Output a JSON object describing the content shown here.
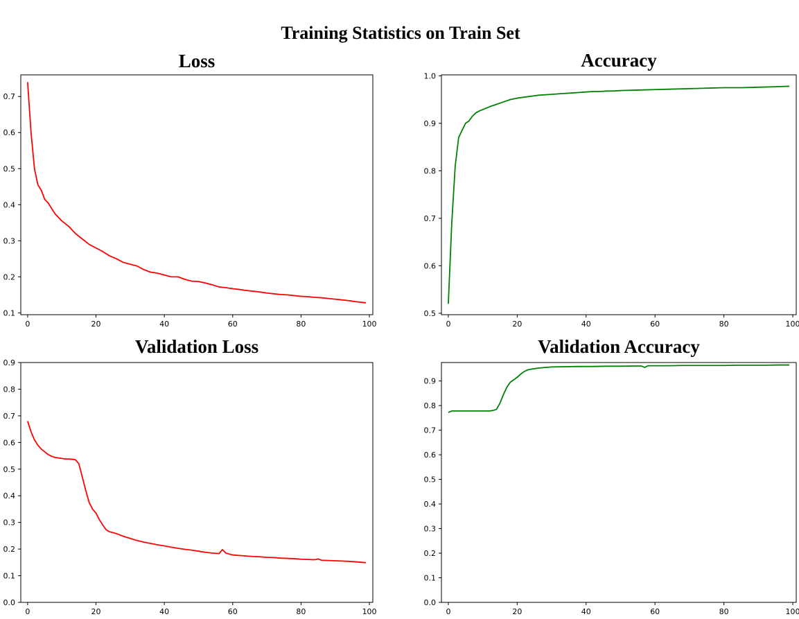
{
  "suptitle": "Training Statistics on Train Set",
  "chart_data": [
    {
      "type": "line",
      "title": "Loss",
      "xlim": [
        -2,
        101
      ],
      "ylim": [
        0.095,
        0.76
      ],
      "xticks": [
        0,
        20,
        40,
        60,
        80,
        100
      ],
      "yticks": [
        0.1,
        0.2,
        0.3,
        0.4,
        0.5,
        0.6,
        0.7
      ],
      "color": "#ff0000",
      "x": [
        0,
        1,
        2,
        3,
        4,
        5,
        6,
        7,
        8,
        9,
        10,
        12,
        14,
        16,
        18,
        20,
        22,
        24,
        26,
        28,
        30,
        32,
        34,
        36,
        38,
        40,
        42,
        44,
        46,
        48,
        50,
        52,
        54,
        56,
        58,
        60,
        62,
        64,
        66,
        68,
        70,
        72,
        74,
        76,
        78,
        80,
        82,
        84,
        86,
        88,
        90,
        92,
        94,
        96,
        98,
        99
      ],
      "y": [
        0.74,
        0.6,
        0.5,
        0.455,
        0.44,
        0.415,
        0.405,
        0.39,
        0.375,
        0.365,
        0.355,
        0.34,
        0.32,
        0.305,
        0.29,
        0.28,
        0.27,
        0.258,
        0.25,
        0.24,
        0.235,
        0.23,
        0.22,
        0.213,
        0.21,
        0.205,
        0.2,
        0.2,
        0.193,
        0.188,
        0.187,
        0.183,
        0.178,
        0.172,
        0.17,
        0.167,
        0.165,
        0.162,
        0.16,
        0.158,
        0.155,
        0.153,
        0.151,
        0.15,
        0.148,
        0.146,
        0.145,
        0.143,
        0.142,
        0.14,
        0.138,
        0.136,
        0.134,
        0.131,
        0.129,
        0.128
      ]
    },
    {
      "type": "line",
      "title": "Accuracy",
      "xlim": [
        -2,
        101
      ],
      "ylim": [
        0.497,
        1.002
      ],
      "xticks": [
        0,
        20,
        40,
        60,
        80,
        100
      ],
      "yticks": [
        0.5,
        0.6,
        0.7,
        0.8,
        0.9,
        1.0
      ],
      "color": "#008000",
      "x": [
        0,
        1,
        2,
        3,
        4,
        5,
        6,
        7,
        8,
        9,
        10,
        12,
        14,
        16,
        18,
        20,
        22,
        24,
        26,
        28,
        30,
        32,
        34,
        36,
        38,
        40,
        42,
        44,
        46,
        48,
        50,
        55,
        60,
        65,
        70,
        75,
        80,
        85,
        90,
        95,
        99
      ],
      "y": [
        0.52,
        0.69,
        0.81,
        0.87,
        0.885,
        0.9,
        0.905,
        0.915,
        0.922,
        0.926,
        0.929,
        0.935,
        0.94,
        0.945,
        0.95,
        0.953,
        0.955,
        0.957,
        0.959,
        0.96,
        0.961,
        0.962,
        0.963,
        0.964,
        0.965,
        0.966,
        0.967,
        0.967,
        0.968,
        0.968,
        0.969,
        0.97,
        0.971,
        0.972,
        0.973,
        0.974,
        0.975,
        0.975,
        0.976,
        0.977,
        0.978
      ]
    },
    {
      "type": "line",
      "title": "Validation Loss",
      "xlim": [
        -2,
        101
      ],
      "ylim": [
        0.0,
        0.9
      ],
      "xticks": [
        0,
        20,
        40,
        60,
        80,
        100
      ],
      "yticks": [
        0.0,
        0.1,
        0.2,
        0.3,
        0.4,
        0.5,
        0.6,
        0.7,
        0.8,
        0.9
      ],
      "color": "#ff0000",
      "x": [
        0,
        1,
        2,
        3,
        4,
        5,
        6,
        7,
        8,
        9,
        10,
        11,
        12,
        13,
        14,
        15,
        16,
        17,
        18,
        19,
        20,
        21,
        22,
        23,
        24,
        26,
        28,
        30,
        32,
        34,
        36,
        38,
        40,
        42,
        44,
        46,
        48,
        50,
        52,
        54,
        56,
        57,
        58,
        60,
        62,
        64,
        66,
        68,
        70,
        72,
        74,
        76,
        78,
        80,
        82,
        84,
        85,
        86,
        88,
        90,
        92,
        94,
        96,
        98,
        99
      ],
      "y": [
        0.68,
        0.64,
        0.61,
        0.59,
        0.575,
        0.565,
        0.555,
        0.548,
        0.544,
        0.542,
        0.54,
        0.538,
        0.538,
        0.537,
        0.535,
        0.52,
        0.47,
        0.42,
        0.375,
        0.35,
        0.335,
        0.31,
        0.29,
        0.272,
        0.265,
        0.258,
        0.248,
        0.24,
        0.232,
        0.226,
        0.221,
        0.216,
        0.212,
        0.207,
        0.203,
        0.199,
        0.196,
        0.192,
        0.188,
        0.185,
        0.183,
        0.198,
        0.185,
        0.178,
        0.176,
        0.174,
        0.172,
        0.171,
        0.169,
        0.168,
        0.166,
        0.165,
        0.164,
        0.162,
        0.161,
        0.16,
        0.163,
        0.158,
        0.157,
        0.156,
        0.155,
        0.154,
        0.152,
        0.15,
        0.149
      ]
    },
    {
      "type": "line",
      "title": "Validation Accuracy",
      "xlim": [
        -2,
        101
      ],
      "ylim": [
        0.0,
        0.975
      ],
      "xticks": [
        0,
        20,
        40,
        60,
        80,
        100
      ],
      "yticks": [
        0.0,
        0.1,
        0.2,
        0.3,
        0.4,
        0.5,
        0.6,
        0.7,
        0.8,
        0.9
      ],
      "color": "#008000",
      "x": [
        0,
        1,
        2,
        4,
        6,
        8,
        10,
        12,
        13,
        14,
        15,
        16,
        17,
        18,
        19,
        20,
        21,
        22,
        23,
        24,
        26,
        28,
        30,
        34,
        38,
        42,
        46,
        50,
        54,
        56,
        57,
        58,
        60,
        64,
        68,
        72,
        76,
        80,
        84,
        88,
        92,
        96,
        99
      ],
      "y": [
        0.772,
        0.778,
        0.778,
        0.778,
        0.778,
        0.778,
        0.778,
        0.778,
        0.78,
        0.785,
        0.81,
        0.845,
        0.875,
        0.895,
        0.905,
        0.915,
        0.928,
        0.938,
        0.945,
        0.948,
        0.952,
        0.955,
        0.957,
        0.958,
        0.959,
        0.959,
        0.96,
        0.96,
        0.961,
        0.961,
        0.955,
        0.962,
        0.962,
        0.962,
        0.963,
        0.963,
        0.963,
        0.963,
        0.964,
        0.964,
        0.964,
        0.965,
        0.965
      ]
    }
  ]
}
